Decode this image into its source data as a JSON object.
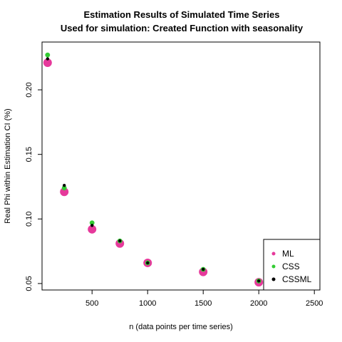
{
  "chart_data": {
    "type": "scatter",
    "title": "Estimation Results of Simulated Time Series",
    "subtitle": "Used for simulation: Created Function with seasonality",
    "xlabel": "n (data points per time series)",
    "ylabel": "Real Phi within Estimation CI (%)",
    "xlim": [
      50,
      2550
    ],
    "ylim": [
      0.045,
      0.237
    ],
    "xticks": [
      500,
      1000,
      1500,
      2000,
      2500
    ],
    "yticks": [
      0.05,
      0.1,
      0.15,
      0.2
    ],
    "xtick_labels": [
      "500",
      "1000",
      "1500",
      "2000",
      "2500"
    ],
    "ytick_labels": [
      "0.05",
      "0.10",
      "0.15",
      "0.20"
    ],
    "grid": false,
    "legend_position": "bottom-right",
    "series": [
      {
        "name": "ML",
        "color": "#e6399b",
        "x": [
          100,
          250,
          500,
          750,
          1000,
          1500,
          2000
        ],
        "y": [
          0.221,
          0.121,
          0.092,
          0.081,
          0.066,
          0.059,
          0.051
        ]
      },
      {
        "name": "CSS",
        "color": "#33cc33",
        "x": [
          100,
          250,
          500,
          750,
          1000,
          1500,
          2000
        ],
        "y": [
          0.227,
          0.124,
          0.097,
          0.083,
          0.066,
          0.061,
          0.052
        ]
      },
      {
        "name": "CSSML",
        "color": "#000000",
        "x": [
          100,
          250,
          500,
          750,
          1000,
          1500,
          2000
        ],
        "y": [
          0.224,
          0.126,
          0.095,
          0.083,
          0.066,
          0.061,
          0.052
        ]
      }
    ]
  }
}
